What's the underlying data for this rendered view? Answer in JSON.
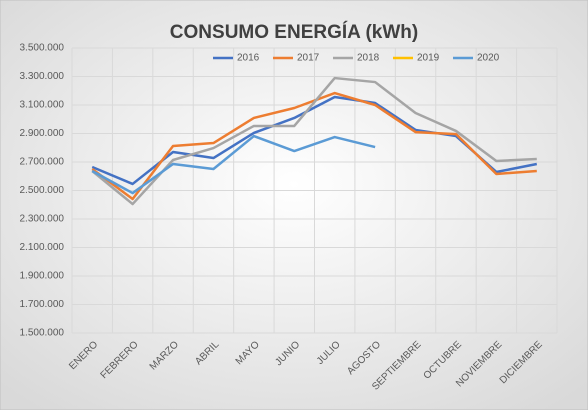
{
  "chart_data": {
    "type": "line",
    "title": "CONSUMO ENERGÍA (kWh)",
    "categories": [
      "ENERO",
      "FEBRERO",
      "MARZO",
      "ABRIL",
      "MAYO",
      "JUNIO",
      "JULIO",
      "AGOSTO",
      "SEPTIEMBRE",
      "OCTUBRE",
      "NOVIEMBRE",
      "DICIEMBRE"
    ],
    "series": [
      {
        "name": "2016",
        "color": "#4472c4",
        "values": [
          2665000,
          2546000,
          2770000,
          2728000,
          2904000,
          3009000,
          3156000,
          3114000,
          2925000,
          2882000,
          2630000,
          2686000
        ]
      },
      {
        "name": "2017",
        "color": "#ed7d31",
        "values": [
          2651000,
          2440000,
          2812000,
          2833000,
          3009000,
          3079000,
          3184000,
          3100000,
          2910000,
          2896000,
          2616000,
          2637000
        ]
      },
      {
        "name": "2018",
        "color": "#a5a5a5",
        "values": [
          2637000,
          2405000,
          2714000,
          2798000,
          2953000,
          2953000,
          3289000,
          3261000,
          3044000,
          2918000,
          2707000,
          2721000
        ]
      },
      {
        "name": "2019",
        "color": "#ffc000",
        "values": [
          null,
          null,
          null,
          null,
          null,
          null,
          null,
          null,
          null,
          null,
          null,
          null
        ]
      },
      {
        "name": "2020",
        "color": "#5b9bd5",
        "values": [
          2637000,
          2482000,
          2686000,
          2651000,
          2882000,
          2777000,
          2875000,
          2805000,
          null,
          null,
          null,
          null
        ]
      }
    ],
    "ylim": [
      1500000,
      3500000
    ],
    "yticks": [
      {
        "value": 1500000,
        "label": "1.500.000"
      },
      {
        "value": 1700000,
        "label": "1.700.000"
      },
      {
        "value": 1900000,
        "label": "1.900.000"
      },
      {
        "value": 2100000,
        "label": "2.100.000"
      },
      {
        "value": 2300000,
        "label": "2.300.000"
      },
      {
        "value": 2500000,
        "label": "2.500.000"
      },
      {
        "value": 2700000,
        "label": "2.700.000"
      },
      {
        "value": 2900000,
        "label": "2.900.000"
      },
      {
        "value": 3100000,
        "label": "3.100.000"
      },
      {
        "value": 3300000,
        "label": "3.300.000"
      },
      {
        "value": 3500000,
        "label": "3.500.000"
      }
    ],
    "grid": true,
    "legend": "top-right"
  }
}
